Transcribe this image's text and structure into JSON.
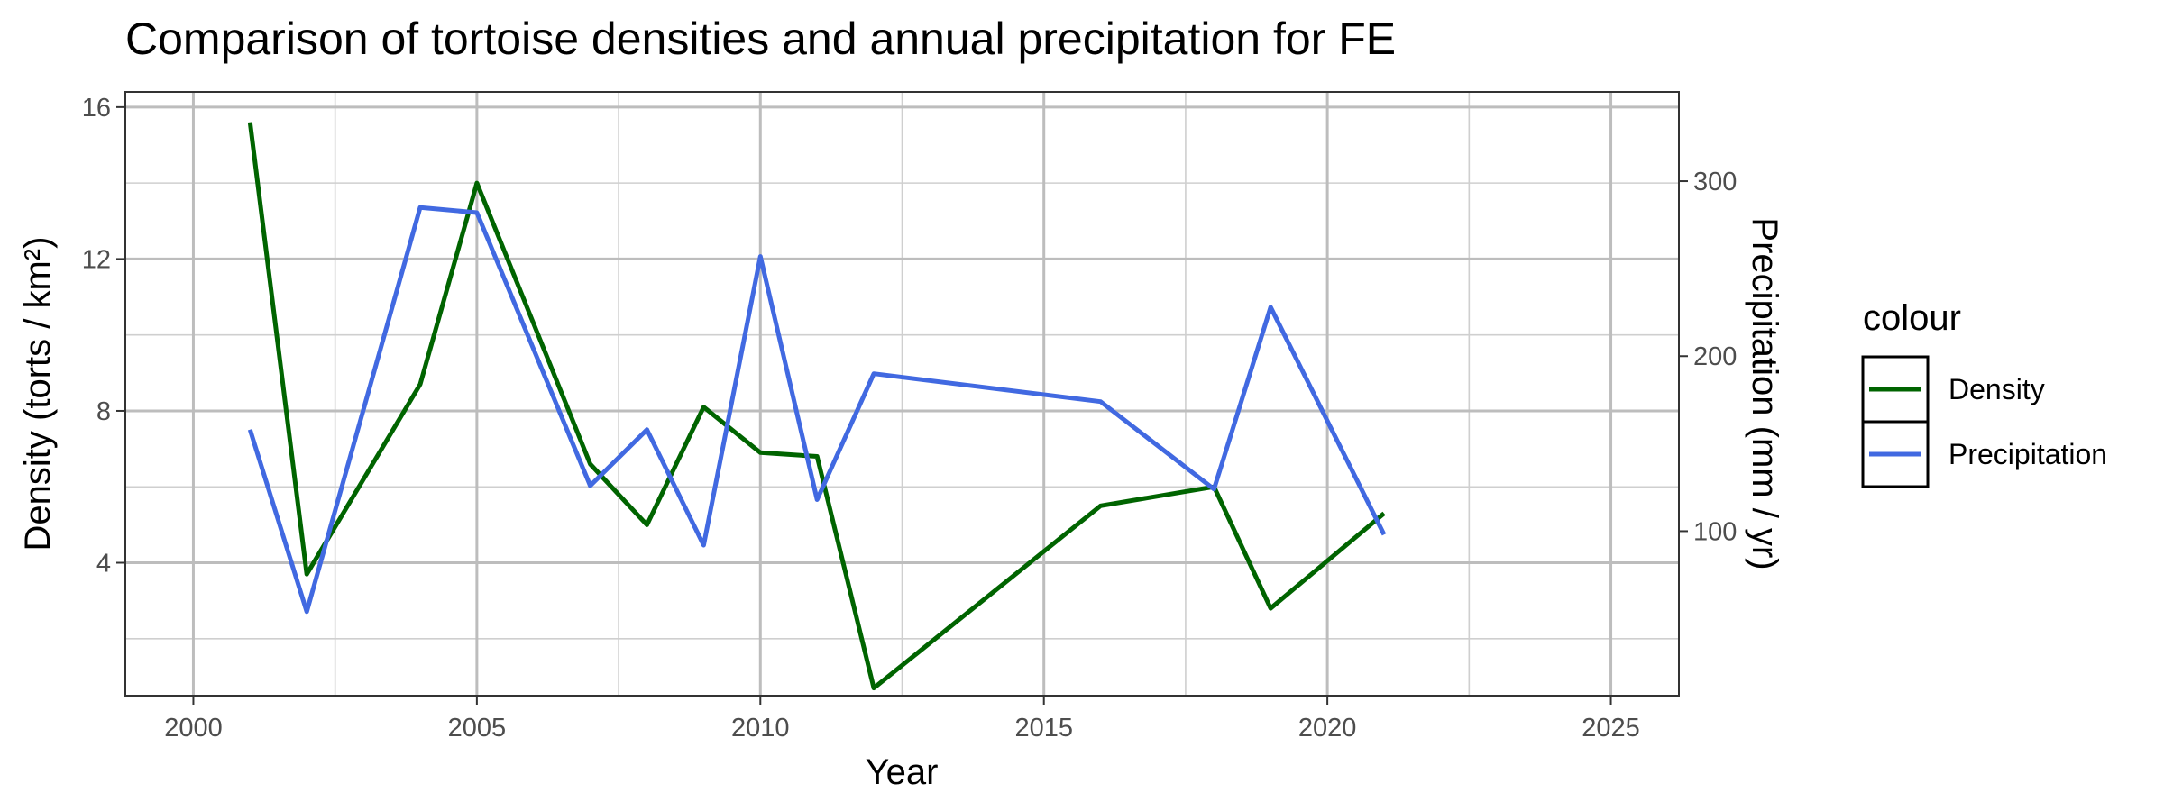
{
  "chart_data": {
    "type": "line",
    "title": "Comparison of tortoise densities and annual precipitation for FE",
    "xlabel": "Year",
    "ylabel": "Density (torts / km²)",
    "y2label": "Precipitation (mm / yr)",
    "xlim": [
      1998.8,
      2026.2
    ],
    "ylim": [
      0.5,
      16.4
    ],
    "y2lim": [
      6,
      351
    ],
    "x_ticks": [
      2000,
      2005,
      2010,
      2015,
      2020,
      2025
    ],
    "y_ticks": [
      4,
      8,
      12,
      16
    ],
    "y2_ticks": [
      100,
      200,
      300
    ],
    "grid": true,
    "legend_title": "colour",
    "legend_position": "right",
    "series": [
      {
        "name": "Density",
        "color": "#006400",
        "axis": "left",
        "x": [
          2001,
          2002,
          2004,
          2005,
          2007,
          2008,
          2009,
          2010,
          2011,
          2012,
          2016,
          2018,
          2019,
          2021
        ],
        "y": [
          15.6,
          3.7,
          8.7,
          14.0,
          6.6,
          5.0,
          8.1,
          6.9,
          6.8,
          0.7,
          5.5,
          6.0,
          2.8,
          5.3
        ]
      },
      {
        "name": "Precipitation",
        "color": "#4169E1",
        "axis": "right",
        "x": [
          2001,
          2002,
          2004,
          2005,
          2007,
          2008,
          2009,
          2010,
          2011,
          2012,
          2016,
          2018,
          2019,
          2021
        ],
        "y": [
          158,
          54,
          285,
          282,
          126,
          158,
          92,
          257,
          118,
          190,
          174,
          124,
          228,
          98
        ]
      }
    ]
  }
}
